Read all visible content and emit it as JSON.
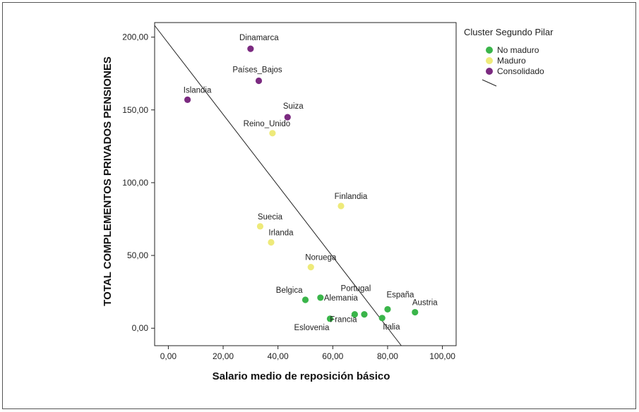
{
  "chart_data": {
    "type": "scatter",
    "title": "",
    "xlabel": "Salario medio de reposición básico",
    "ylabel": "TOTAL COMPLEMENTOS PRIVADOS PENSIONES",
    "xlim": [
      -5,
      105
    ],
    "ylim": [
      -12,
      210
    ],
    "x_ticks": [
      0,
      20,
      40,
      60,
      80,
      100
    ],
    "x_tick_labels": [
      "0,00",
      "20,00",
      "40,00",
      "60,00",
      "80,00",
      "100,00"
    ],
    "y_ticks": [
      0,
      50,
      100,
      150,
      200
    ],
    "y_tick_labels": [
      "0,00",
      "50,00",
      "100,00",
      "150,00",
      "200,00"
    ],
    "grid": false,
    "legend": {
      "title": "Cluster Segundo Pilar",
      "placement": "right",
      "entries": [
        {
          "name": "No maduro",
          "color": "#3ab54a"
        },
        {
          "name": "Maduro",
          "color": "#eeea7a"
        },
        {
          "name": "Consolidado",
          "color": "#7b2a80"
        }
      ]
    },
    "fit_line": {
      "x1": -5,
      "y1": 208,
      "x2": 85,
      "y2": -12
    },
    "points": [
      {
        "label": "Dinamarca",
        "x": 30,
        "y": 192,
        "cluster": 2
      },
      {
        "label": "Países_Bajos",
        "x": 33,
        "y": 170,
        "cluster": 2
      },
      {
        "label": "Islandia",
        "x": 7,
        "y": 157,
        "cluster": 2
      },
      {
        "label": "Suiza",
        "x": 43.5,
        "y": 145,
        "cluster": 2
      },
      {
        "label": "Reino_Unido",
        "x": 38,
        "y": 134,
        "cluster": 1
      },
      {
        "label": "Finlandia",
        "x": 63,
        "y": 84,
        "cluster": 1
      },
      {
        "label": "Suecia",
        "x": 33.5,
        "y": 70,
        "cluster": 1
      },
      {
        "label": "Irlanda",
        "x": 37.5,
        "y": 59,
        "cluster": 1
      },
      {
        "label": "Noruega",
        "x": 52,
        "y": 42,
        "cluster": 1
      },
      {
        "label": "Belgica",
        "x": 50,
        "y": 19.5,
        "cluster": 0
      },
      {
        "label": "Alemania",
        "x": 55.5,
        "y": 21,
        "cluster": 0
      },
      {
        "label": "Portugal",
        "x": 71.5,
        "y": 9.5,
        "cluster": 0
      },
      {
        "label": "España",
        "x": 80,
        "y": 13,
        "cluster": 0
      },
      {
        "label": "Austria",
        "x": 90,
        "y": 11,
        "cluster": 0
      },
      {
        "label": "Eslovenia",
        "x": 59,
        "y": 6.5,
        "cluster": 0
      },
      {
        "label": "Francia",
        "x": 68,
        "y": 9.5,
        "cluster": 0
      },
      {
        "label": "Italia",
        "x": 78,
        "y": 7,
        "cluster": 0
      }
    ]
  }
}
